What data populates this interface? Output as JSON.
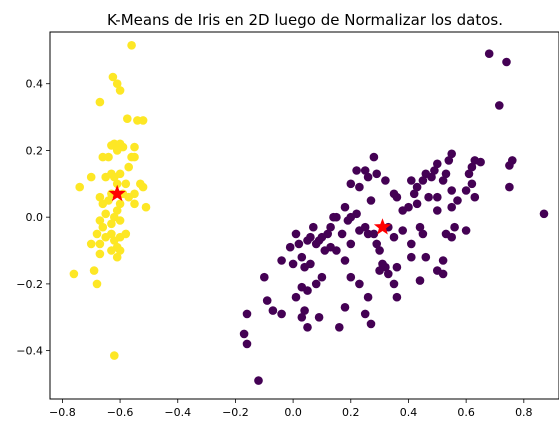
{
  "chart_data": {
    "type": "scatter",
    "title": "K-Means de Iris en 2D luego de Normalizar los datos.",
    "xlabel": "",
    "ylabel": "",
    "xlim": [
      -0.843,
      0.922
    ],
    "ylim": [
      -0.545,
      0.555
    ],
    "xticks": [
      -0.8,
      -0.6,
      -0.4,
      -0.2,
      0.0,
      0.2,
      0.4,
      0.6,
      0.8
    ],
    "xtick_labels": [
      "−0.8",
      "−0.6",
      "−0.4",
      "−0.2",
      "0.0",
      "0.2",
      "0.4",
      "0.6",
      "0.8"
    ],
    "yticks": [
      -0.4,
      -0.2,
      0.0,
      0.2,
      0.4
    ],
    "ytick_labels": [
      "−0.4",
      "−0.2",
      "0.0",
      "0.2",
      "0.4"
    ],
    "grid": false,
    "colors": {
      "cluster_0": "#440154",
      "cluster_1": "#fde725",
      "centroid": "#ff0000"
    },
    "series": [
      {
        "cluster": 1,
        "color": "#fde725",
        "points": [
          [
            -0.56,
            0.515
          ],
          [
            -0.625,
            0.42
          ],
          [
            -0.6,
            0.38
          ],
          [
            -0.61,
            0.4
          ],
          [
            -0.67,
            0.345
          ],
          [
            -0.575,
            0.295
          ],
          [
            -0.54,
            0.29
          ],
          [
            -0.52,
            0.29
          ],
          [
            -0.62,
            0.22
          ],
          [
            -0.63,
            0.215
          ],
          [
            -0.6,
            0.22
          ],
          [
            -0.59,
            0.21
          ],
          [
            -0.61,
            0.2
          ],
          [
            -0.64,
            0.18
          ],
          [
            -0.66,
            0.18
          ],
          [
            -0.7,
            0.12
          ],
          [
            -0.55,
            0.21
          ],
          [
            -0.55,
            0.18
          ],
          [
            -0.56,
            0.18
          ],
          [
            -0.57,
            0.15
          ],
          [
            -0.6,
            0.13
          ],
          [
            -0.62,
            0.12
          ],
          [
            -0.63,
            0.13
          ],
          [
            -0.65,
            0.12
          ],
          [
            -0.74,
            0.09
          ],
          [
            -0.61,
            0.1
          ],
          [
            -0.58,
            0.1
          ],
          [
            -0.53,
            0.1
          ],
          [
            -0.52,
            0.09
          ],
          [
            -0.55,
            0.07
          ],
          [
            -0.57,
            0.06
          ],
          [
            -0.59,
            0.07
          ],
          [
            -0.63,
            0.07
          ],
          [
            -0.64,
            0.05
          ],
          [
            -0.66,
            0.04
          ],
          [
            -0.67,
            0.06
          ],
          [
            -0.6,
            0.04
          ],
          [
            -0.61,
            0.02
          ],
          [
            -0.62,
            0.0
          ],
          [
            -0.65,
            0.01
          ],
          [
            -0.67,
            -0.01
          ],
          [
            -0.66,
            -0.03
          ],
          [
            -0.63,
            -0.02
          ],
          [
            -0.6,
            -0.01
          ],
          [
            -0.55,
            0.04
          ],
          [
            -0.51,
            0.03
          ],
          [
            -0.58,
            -0.05
          ],
          [
            -0.6,
            -0.06
          ],
          [
            -0.62,
            -0.07
          ],
          [
            -0.63,
            -0.05
          ],
          [
            -0.65,
            -0.06
          ],
          [
            -0.68,
            -0.05
          ],
          [
            -0.67,
            -0.08
          ],
          [
            -0.7,
            -0.08
          ],
          [
            -0.61,
            -0.09
          ],
          [
            -0.6,
            -0.1
          ],
          [
            -0.63,
            -0.1
          ],
          [
            -0.67,
            -0.11
          ],
          [
            -0.76,
            -0.17
          ],
          [
            -0.69,
            -0.16
          ],
          [
            -0.68,
            -0.2
          ],
          [
            -0.61,
            -0.12
          ],
          [
            -0.62,
            -0.415
          ]
        ]
      },
      {
        "cluster": 0,
        "color": "#440154",
        "points": [
          [
            0.68,
            0.49
          ],
          [
            0.74,
            0.465
          ],
          [
            0.715,
            0.335
          ],
          [
            0.87,
            0.01
          ],
          [
            0.76,
            0.17
          ],
          [
            0.75,
            0.155
          ],
          [
            0.75,
            0.09
          ],
          [
            0.63,
            0.17
          ],
          [
            0.62,
            0.15
          ],
          [
            0.65,
            0.165
          ],
          [
            0.61,
            0.13
          ],
          [
            0.62,
            0.1
          ],
          [
            0.6,
            0.08
          ],
          [
            0.63,
            0.06
          ],
          [
            0.55,
            0.19
          ],
          [
            0.54,
            0.17
          ],
          [
            0.53,
            0.13
          ],
          [
            0.52,
            0.11
          ],
          [
            0.5,
            0.16
          ],
          [
            0.49,
            0.14
          ],
          [
            0.48,
            0.12
          ],
          [
            0.46,
            0.13
          ],
          [
            0.45,
            0.11
          ],
          [
            0.43,
            0.09
          ],
          [
            0.42,
            0.07
          ],
          [
            0.41,
            0.11
          ],
          [
            0.47,
            0.06
          ],
          [
            0.5,
            0.06
          ],
          [
            0.55,
            0.08
          ],
          [
            0.57,
            0.05
          ],
          [
            0.55,
            0.03
          ],
          [
            0.5,
            0.02
          ],
          [
            0.43,
            0.04
          ],
          [
            0.4,
            0.03
          ],
          [
            0.38,
            0.02
          ],
          [
            0.36,
            0.06
          ],
          [
            0.35,
            0.07
          ],
          [
            0.32,
            0.11
          ],
          [
            0.29,
            0.13
          ],
          [
            0.28,
            0.18
          ],
          [
            0.26,
            0.12
          ],
          [
            0.25,
            0.14
          ],
          [
            0.22,
            0.14
          ],
          [
            0.2,
            0.1
          ],
          [
            0.23,
            0.09
          ],
          [
            0.27,
            0.05
          ],
          [
            0.22,
            0.01
          ],
          [
            0.2,
            0.0
          ],
          [
            0.19,
            -0.01
          ],
          [
            0.18,
            0.03
          ],
          [
            0.15,
            0.0
          ],
          [
            0.14,
            0.0
          ],
          [
            0.13,
            -0.03
          ],
          [
            0.12,
            -0.05
          ],
          [
            0.1,
            -0.06
          ],
          [
            0.08,
            -0.08
          ],
          [
            0.07,
            -0.03
          ],
          [
            0.06,
            -0.06
          ],
          [
            0.05,
            -0.07
          ],
          [
            0.02,
            -0.08
          ],
          [
            0.01,
            -0.05
          ],
          [
            -0.01,
            -0.09
          ],
          [
            0.0,
            -0.14
          ],
          [
            0.03,
            -0.12
          ],
          [
            0.04,
            -0.15
          ],
          [
            0.06,
            -0.14
          ],
          [
            0.09,
            -0.07
          ],
          [
            0.11,
            -0.1
          ],
          [
            0.13,
            -0.09
          ],
          [
            0.15,
            -0.1
          ],
          [
            0.17,
            -0.05
          ],
          [
            0.18,
            -0.13
          ],
          [
            0.2,
            -0.08
          ],
          [
            0.23,
            -0.04
          ],
          [
            0.25,
            -0.03
          ],
          [
            0.26,
            -0.05
          ],
          [
            0.28,
            -0.05
          ],
          [
            0.29,
            -0.08
          ],
          [
            0.3,
            -0.1
          ],
          [
            0.33,
            -0.03
          ],
          [
            0.35,
            -0.06
          ],
          [
            0.38,
            -0.04
          ],
          [
            0.41,
            -0.08
          ],
          [
            0.44,
            -0.03
          ],
          [
            0.45,
            -0.05
          ],
          [
            0.53,
            -0.05
          ],
          [
            0.55,
            -0.06
          ],
          [
            0.56,
            -0.03
          ],
          [
            0.6,
            -0.04
          ],
          [
            0.46,
            -0.12
          ],
          [
            0.41,
            -0.12
          ],
          [
            0.36,
            -0.15
          ],
          [
            0.33,
            -0.17
          ],
          [
            0.32,
            -0.15
          ],
          [
            0.31,
            -0.14
          ],
          [
            0.3,
            -0.16
          ],
          [
            0.35,
            -0.2
          ],
          [
            0.36,
            -0.24
          ],
          [
            0.26,
            -0.24
          ],
          [
            0.23,
            -0.2
          ],
          [
            0.2,
            -0.18
          ],
          [
            0.1,
            -0.18
          ],
          [
            0.08,
            -0.2
          ],
          [
            0.05,
            -0.22
          ],
          [
            0.03,
            -0.21
          ],
          [
            0.01,
            -0.24
          ],
          [
            0.04,
            -0.28
          ],
          [
            0.03,
            -0.3
          ],
          [
            0.05,
            -0.33
          ],
          [
            -0.07,
            -0.28
          ],
          [
            -0.04,
            -0.29
          ],
          [
            -0.09,
            -0.25
          ],
          [
            -0.1,
            -0.18
          ],
          [
            -0.04,
            -0.13
          ],
          [
            -0.16,
            -0.29
          ],
          [
            -0.17,
            -0.35
          ],
          [
            -0.16,
            -0.38
          ],
          [
            -0.12,
            -0.49
          ],
          [
            0.09,
            -0.3
          ],
          [
            0.16,
            -0.33
          ],
          [
            0.18,
            -0.27
          ],
          [
            0.25,
            -0.29
          ],
          [
            0.27,
            -0.32
          ],
          [
            0.5,
            -0.16
          ],
          [
            0.52,
            -0.13
          ],
          [
            0.52,
            -0.17
          ],
          [
            0.44,
            -0.19
          ]
        ]
      }
    ],
    "centroids": [
      {
        "cluster": 1,
        "x": -0.61,
        "y": 0.07
      },
      {
        "cluster": 0,
        "x": 0.31,
        "y": -0.03
      }
    ]
  }
}
